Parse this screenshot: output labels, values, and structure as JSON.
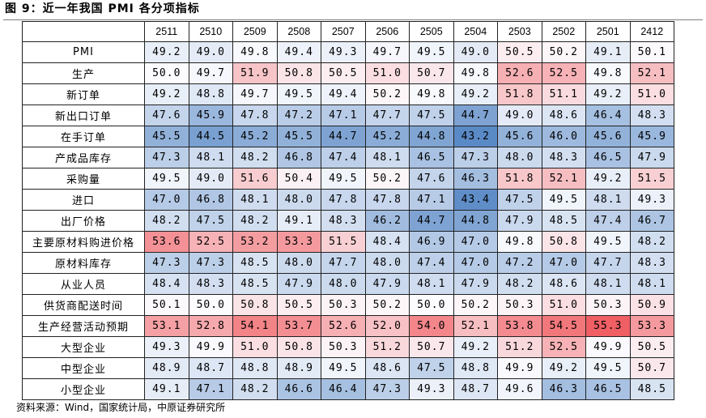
{
  "figure": {
    "title": "图 9：近一年我国 PMI 各分项指标",
    "source": "资料来源：Wind，国家统计局，中原证券研究所"
  },
  "colors": {
    "high": "#ef5f64",
    "mid": "#fcfcff",
    "low": "#5a8ac6",
    "midpoint": 50
  },
  "chart_data": {
    "type": "heatmap",
    "columns": [
      "2511",
      "2510",
      "2509",
      "2508",
      "2507",
      "2506",
      "2505",
      "2504",
      "2503",
      "2502",
      "2501",
      "2412"
    ],
    "rows": [
      {
        "label": "PMI",
        "values": [
          "49.2",
          "49.0",
          "49.8",
          "49.4",
          "49.3",
          "49.7",
          "49.5",
          "49.0",
          "50.5",
          "50.2",
          "49.1",
          "50.1"
        ]
      },
      {
        "label": "生产",
        "values": [
          "50.0",
          "49.7",
          "51.9",
          "50.8",
          "50.5",
          "51.0",
          "50.7",
          "49.8",
          "52.6",
          "52.5",
          "49.8",
          "52.1"
        ]
      },
      {
        "label": "新订单",
        "values": [
          "49.2",
          "48.8",
          "49.7",
          "49.5",
          "49.4",
          "50.2",
          "49.8",
          "49.2",
          "51.8",
          "51.1",
          "49.2",
          "51.0"
        ]
      },
      {
        "label": "新出口订单",
        "values": [
          "47.6",
          "45.9",
          "47.8",
          "47.2",
          "47.1",
          "47.7",
          "47.5",
          "44.7",
          "49.0",
          "48.6",
          "46.4",
          "48.3"
        ]
      },
      {
        "label": "在手订单",
        "values": [
          "45.5",
          "44.5",
          "45.2",
          "45.5",
          "44.7",
          "45.2",
          "44.8",
          "43.2",
          "45.6",
          "46.0",
          "45.6",
          "45.9"
        ]
      },
      {
        "label": "产成品库存",
        "values": [
          "47.3",
          "48.1",
          "48.2",
          "46.8",
          "47.4",
          "48.1",
          "46.5",
          "47.3",
          "48.0",
          "48.3",
          "46.5",
          "47.9"
        ]
      },
      {
        "label": "采购量",
        "values": [
          "49.5",
          "49.0",
          "51.6",
          "50.4",
          "49.5",
          "50.2",
          "47.6",
          "46.3",
          "51.8",
          "52.1",
          "49.2",
          "51.5"
        ]
      },
      {
        "label": "进口",
        "values": [
          "47.0",
          "46.8",
          "48.1",
          "48.0",
          "47.8",
          "47.8",
          "47.1",
          "43.4",
          "47.5",
          "49.5",
          "48.1",
          "49.3"
        ]
      },
      {
        "label": "出厂价格",
        "values": [
          "48.2",
          "47.5",
          "48.2",
          "49.1",
          "48.3",
          "46.2",
          "44.7",
          "44.8",
          "47.9",
          "48.5",
          "47.4",
          "46.7"
        ]
      },
      {
        "label": "主要原材料购进价格",
        "values": [
          "53.6",
          "52.5",
          "53.2",
          "53.3",
          "51.5",
          "48.4",
          "46.9",
          "47.0",
          "49.8",
          "50.8",
          "49.5",
          "48.2"
        ]
      },
      {
        "label": "原材料库存",
        "values": [
          "47.3",
          "47.3",
          "48.5",
          "48.0",
          "47.7",
          "48.0",
          "47.4",
          "47.0",
          "47.2",
          "47.0",
          "47.7",
          "48.3"
        ]
      },
      {
        "label": "从业人员",
        "values": [
          "48.4",
          "48.3",
          "48.5",
          "47.9",
          "48.0",
          "47.9",
          "48.1",
          "47.9",
          "48.2",
          "48.6",
          "48.1",
          "48.1"
        ]
      },
      {
        "label": "供货商配送时间",
        "values": [
          "50.1",
          "50.0",
          "50.8",
          "50.5",
          "50.3",
          "50.2",
          "50.0",
          "50.2",
          "50.3",
          "51.0",
          "50.3",
          "50.9"
        ]
      },
      {
        "label": "生产经营活动预期",
        "values": [
          "53.1",
          "52.8",
          "54.1",
          "53.7",
          "52.6",
          "52.0",
          "54.0",
          "52.1",
          "53.8",
          "54.5",
          "55.3",
          "53.3"
        ]
      },
      {
        "label": "大型企业",
        "values": [
          "49.3",
          "49.9",
          "51.0",
          "50.8",
          "50.3",
          "51.2",
          "50.7",
          "49.2",
          "51.2",
          "52.5",
          "49.9",
          "50.5"
        ]
      },
      {
        "label": "中型企业",
        "values": [
          "48.9",
          "48.7",
          "48.8",
          "48.9",
          "49.5",
          "48.6",
          "47.5",
          "48.8",
          "49.9",
          "49.2",
          "49.5",
          "50.7"
        ]
      },
      {
        "label": "小型企业",
        "values": [
          "49.1",
          "47.1",
          "48.2",
          "46.6",
          "46.4",
          "47.3",
          "49.3",
          "48.7",
          "49.6",
          "46.3",
          "46.5",
          "48.5"
        ]
      }
    ]
  }
}
